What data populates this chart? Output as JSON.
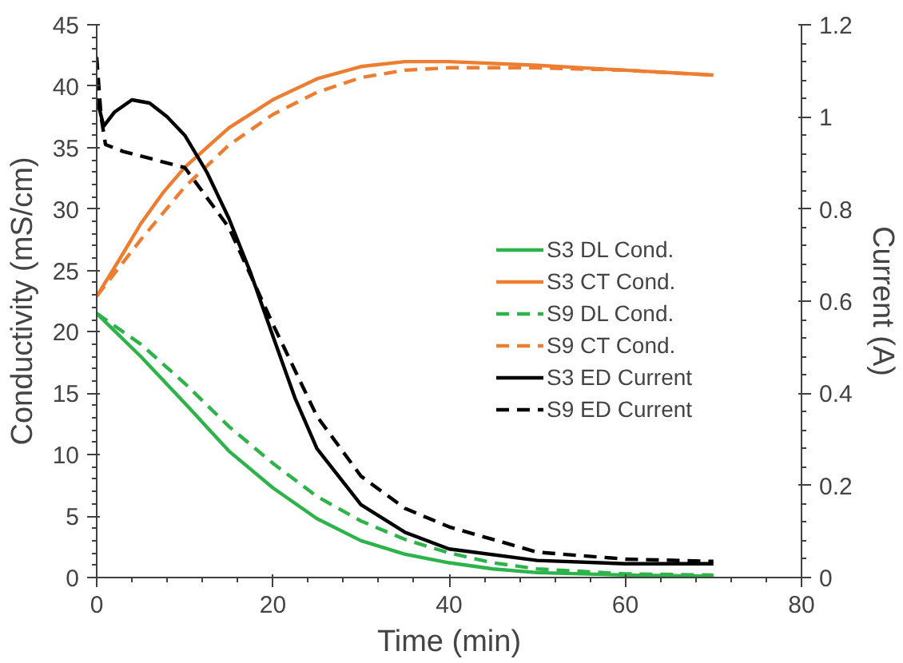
{
  "chart_data": {
    "type": "line",
    "xlabel": "Time (min)",
    "ylabel": "Conductivity (mS/cm)",
    "y2label": "Current (A)",
    "xlim": [
      0,
      80
    ],
    "xticks": [
      0,
      20,
      40,
      60,
      80
    ],
    "ylim": [
      0,
      45
    ],
    "yticks": [
      0,
      5,
      10,
      15,
      20,
      25,
      30,
      35,
      40,
      45
    ],
    "y2lim": [
      0,
      1.2
    ],
    "y2ticks": [
      0,
      0.2,
      0.4,
      0.6,
      0.8,
      {
        "value": 1,
        "label": "1"
      },
      1.2
    ],
    "grid": false,
    "legend": "right",
    "marker": "none",
    "series": [
      {
        "name": "S3 DL Cond.",
        "color": "#2db34a",
        "line_style": "solid",
        "x": [
          0,
          5,
          10,
          15,
          20,
          25,
          30,
          35,
          40,
          45,
          50,
          60,
          70
        ],
        "values": [
          21.5,
          18,
          14.2,
          10.3,
          7.3,
          4.8,
          3.0,
          1.9,
          1.2,
          0.7,
          0.4,
          0.2,
          0.1
        ]
      },
      {
        "name": "S3 CT Cond.",
        "color": "#ed7d31",
        "line_style": "solid",
        "x": [
          0,
          2.5,
          5,
          7.5,
          10,
          15,
          20,
          25,
          30,
          35,
          40,
          50,
          60,
          70
        ],
        "values": [
          22.9,
          25.8,
          28.8,
          31.3,
          33.4,
          36.6,
          38.9,
          40.6,
          41.6,
          42.0,
          42.0,
          41.7,
          41.3,
          40.9
        ]
      },
      {
        "name": "S9 DL Cond.",
        "color": "#2db34a",
        "line_style": "dashed",
        "x": [
          0,
          5,
          10,
          15,
          20,
          25,
          30,
          35,
          40,
          45,
          50,
          60,
          70
        ],
        "values": [
          21.5,
          19,
          15.8,
          12.3,
          9.3,
          6.6,
          4.6,
          3.1,
          2.0,
          1.2,
          0.7,
          0.3,
          0.2
        ]
      },
      {
        "name": "S9 CT Cond.",
        "color": "#ed7d31",
        "line_style": "dashed",
        "x": [
          0,
          5,
          10,
          15,
          20,
          25,
          30,
          35,
          40,
          45,
          50,
          60,
          70
        ],
        "values": [
          22.9,
          27.5,
          31.8,
          35.2,
          37.7,
          39.5,
          40.7,
          41.3,
          41.5,
          41.5,
          41.5,
          41.3,
          40.9
        ]
      },
      {
        "name": "S3 ED Current",
        "color": "#000000",
        "line_style": "solid",
        "axis": "y2",
        "x": [
          0,
          0.8,
          2,
          4,
          6,
          8,
          10,
          12.5,
          15,
          17.5,
          20,
          22.5,
          25,
          30,
          35,
          40,
          50,
          60,
          70
        ],
        "values": [
          1.04,
          0.98,
          1.01,
          1.037,
          1.03,
          1.0,
          0.96,
          0.88,
          0.78,
          0.66,
          0.524,
          0.39,
          0.28,
          0.158,
          0.098,
          0.062,
          0.037,
          0.03,
          0.03
        ]
      },
      {
        "name": "S9 ED Current",
        "color": "#000000",
        "line_style": "dashed",
        "axis": "y2",
        "x": [
          0,
          0.5,
          1,
          3,
          6,
          10,
          15,
          20,
          25,
          30,
          35,
          40,
          50,
          60,
          70
        ],
        "values": [
          1.13,
          1.0,
          0.94,
          0.925,
          0.91,
          0.89,
          0.76,
          0.55,
          0.35,
          0.22,
          0.15,
          0.11,
          0.055,
          0.04,
          0.035
        ]
      }
    ]
  }
}
